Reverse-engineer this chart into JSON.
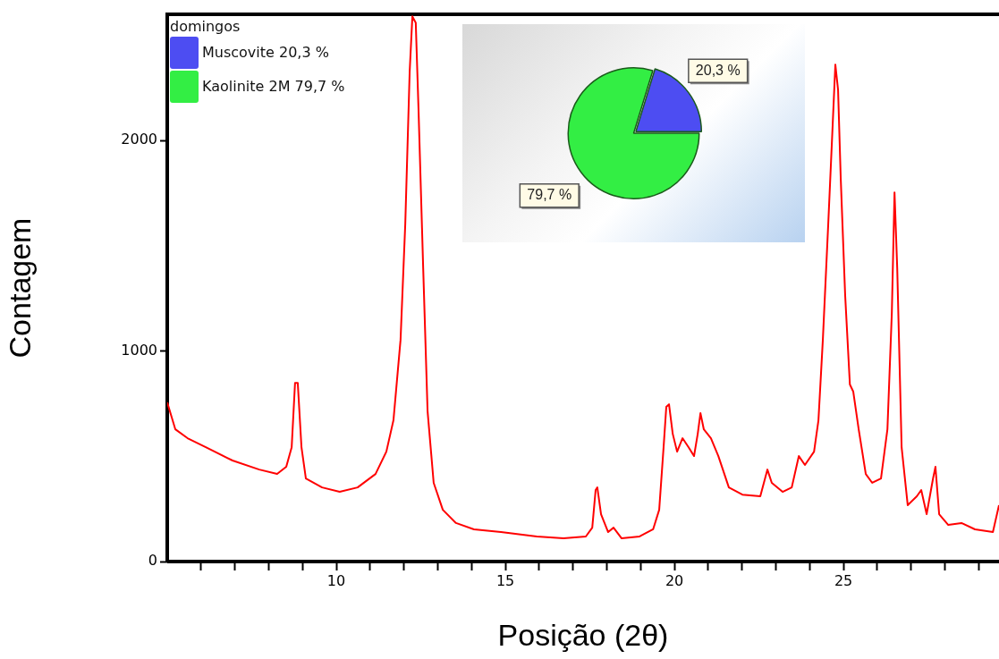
{
  "chart_data": [
    {
      "type": "line",
      "xlabel": "Posição (2θ)",
      "ylabel": "Contagem",
      "color": "#ff0000",
      "marker": "none",
      "x": [
        5.0,
        5.24,
        5.6,
        6.14,
        6.93,
        7.72,
        8.25,
        8.52,
        8.68,
        8.78,
        8.86,
        8.97,
        9.1,
        9.58,
        10.1,
        10.63,
        11.16,
        11.48,
        11.69,
        11.9,
        12.04,
        12.17,
        12.25,
        12.35,
        12.43,
        12.57,
        12.7,
        12.88,
        13.15,
        13.54,
        14.07,
        14.87,
        15.93,
        16.72,
        17.38,
        17.57,
        17.67,
        17.72,
        17.83,
        18.04,
        18.2,
        18.44,
        18.97,
        19.37,
        19.55,
        19.68,
        19.76,
        19.84,
        19.95,
        20.08,
        20.24,
        20.42,
        20.58,
        20.69,
        20.77,
        20.87,
        21.08,
        21.3,
        21.61,
        22.01,
        22.54,
        22.75,
        22.88,
        23.2,
        23.47,
        23.68,
        23.86,
        24.13,
        24.26,
        24.39,
        24.55,
        24.68,
        24.76,
        24.84,
        24.92,
        25.05,
        25.19,
        25.29,
        25.45,
        25.66,
        25.85,
        26.11,
        26.3,
        26.43,
        26.51,
        26.59,
        26.72,
        26.9,
        27.17,
        27.3,
        27.46,
        27.65,
        27.72,
        27.83,
        28.1,
        28.49,
        28.89,
        29.42,
        29.6
      ],
      "values": [
        756,
        628,
        586,
        543,
        480,
        437,
        416,
        450,
        543,
        849,
        849,
        543,
        395,
        352,
        331,
        352,
        416,
        522,
        671,
        1053,
        1605,
        2327,
        2590,
        2560,
        2157,
        1393,
        713,
        374,
        246,
        183,
        153,
        140,
        119,
        110,
        119,
        161,
        340,
        352,
        225,
        140,
        161,
        110,
        119,
        153,
        246,
        543,
        735,
        747,
        607,
        522,
        586,
        543,
        501,
        607,
        705,
        628,
        586,
        501,
        352,
        318,
        310,
        437,
        374,
        331,
        352,
        501,
        459,
        522,
        671,
        1053,
        1605,
        2072,
        2361,
        2242,
        1817,
        1265,
        841,
        807,
        628,
        416,
        374,
        395,
        628,
        1180,
        1754,
        1393,
        543,
        268,
        310,
        340,
        225,
        395,
        450,
        225,
        174,
        183,
        153,
        140,
        268
      ],
      "xlim": [
        5,
        29.6
      ],
      "xticks": [
        {
          "value": 6,
          "label": null
        },
        {
          "value": 7,
          "label": null
        },
        {
          "value": 8,
          "label": null
        },
        {
          "value": 9,
          "label": null
        },
        10,
        {
          "value": 11,
          "label": null
        },
        {
          "value": 12,
          "label": null
        },
        {
          "value": 13,
          "label": null
        },
        {
          "value": 14,
          "label": null
        },
        15,
        {
          "value": 16,
          "label": null
        },
        {
          "value": 17,
          "label": null
        },
        {
          "value": 18,
          "label": null
        },
        {
          "value": 19,
          "label": null
        },
        20,
        {
          "value": 21,
          "label": null
        },
        {
          "value": 22,
          "label": null
        },
        {
          "value": 23,
          "label": null
        },
        {
          "value": 24,
          "label": null
        },
        25,
        {
          "value": 26,
          "label": null
        },
        {
          "value": 27,
          "label": null
        },
        {
          "value": 28,
          "label": null
        },
        {
          "value": 29,
          "label": null
        }
      ],
      "ylim": [
        0,
        2600
      ],
      "yticks": [
        0,
        1000,
        2000
      ]
    },
    {
      "type": "pie",
      "legend": "top left",
      "legend_title": "domingos",
      "categories": [
        "Muscovite 20,3 %",
        "Kaolinite 2M 79,7 %"
      ],
      "values": [
        20.3,
        79.7
      ],
      "colors": [
        "#4d4df2",
        "#33ee44"
      ],
      "value_labels": [
        "20,3 %",
        "79,7 %"
      ]
    }
  ]
}
